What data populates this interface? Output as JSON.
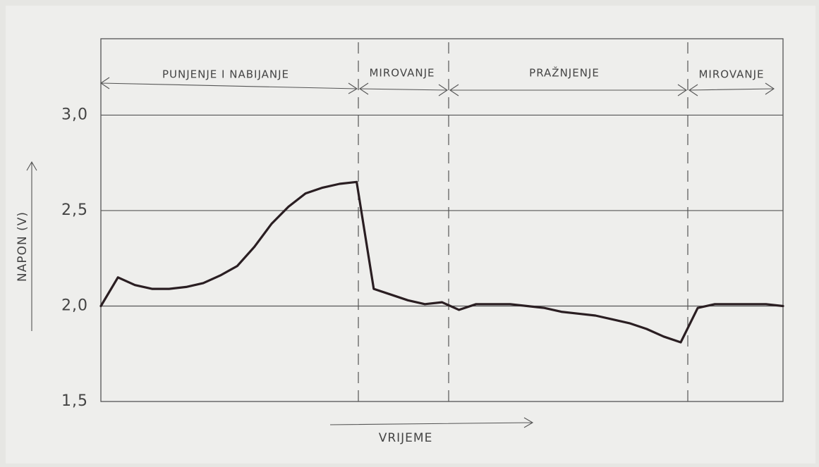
{
  "chart_data": {
    "type": "line",
    "x_label": "VRIJEME",
    "y_label": "NAPON (V)",
    "annotations": [
      "PUNJENJE I NABIJANJE",
      "MIROVANJE",
      "PRAŽNJENJE",
      "MIROVANJE"
    ],
    "categories": [
      null,
      null,
      null,
      null,
      null,
      null,
      null,
      null,
      null,
      null,
      null,
      null,
      null,
      null,
      null,
      null,
      null,
      null,
      null,
      null,
      null,
      null,
      null,
      null,
      null,
      null,
      null,
      null,
      null,
      null,
      null,
      null,
      null,
      null,
      null,
      null,
      null,
      null,
      null,
      null,
      null
    ],
    "series": [
      {
        "color": "#2a1e22",
        "values": [
          2.0,
          2.15,
          2.11,
          2.09,
          2.09,
          2.1,
          2.12,
          2.16,
          2.21,
          2.31,
          2.43,
          2.52,
          2.59,
          2.62,
          2.64,
          2.65,
          2.09,
          2.06,
          2.03,
          2.01,
          2.02,
          1.98,
          2.01,
          2.01,
          2.01,
          2.0,
          1.99,
          1.97,
          1.96,
          1.95,
          1.93,
          1.91,
          1.88,
          1.84,
          1.81,
          1.99,
          2.01,
          2.01,
          2.01,
          2.01,
          2.0
        ]
      }
    ],
    "ylim": [
      1.5,
      3.4
    ],
    "yticks": [
      {
        "value": 1.5,
        "label": "1,5"
      },
      {
        "value": 2.0,
        "label": "2,0"
      },
      {
        "value": 2.5,
        "label": "2,5"
      },
      {
        "value": 3.0,
        "label": "3,0"
      }
    ],
    "grid": true
  }
}
